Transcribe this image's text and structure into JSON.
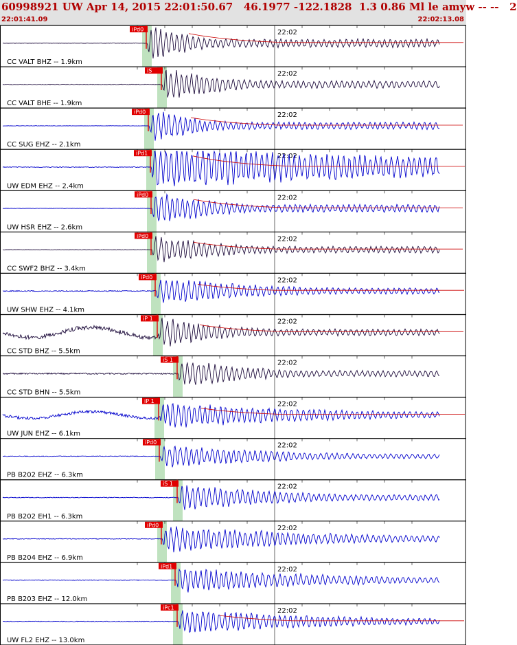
{
  "header": {
    "title": "60998921 UW Apr 14, 2015 22:01:50.67   46.1977 -122.1828  1.3 0.86 Ml le amyw -- --   2",
    "start_time": "22:01:41.09",
    "end_time": "22:02:13.08"
  },
  "colors": {
    "header_bg": "#e2e2e2",
    "header_text": "#b00000",
    "pick": "#e00000",
    "window": "#b4ddb4",
    "trace_blue": "#0000cc",
    "trace_dark": "#1c0a3a",
    "envelope": "#cc0000"
  },
  "chart_data": {
    "type": "line",
    "time_axis": {
      "start": "22:01:41.09",
      "end": "22:02:13.08",
      "minute_mark": "22:02"
    },
    "traces": [
      {
        "label": "CC VALT BHZ -- 1.9km",
        "pick": "iPd0",
        "color": "dark",
        "onset": 215,
        "amp": 30,
        "decay": 0.014,
        "noise": 0.5,
        "envelope": true
      },
      {
        "label": "CC VALT BHE -- 1.9km",
        "pick": "iS",
        "color": "dark",
        "onset": 237,
        "amp": 26,
        "decay": 0.01,
        "noise": 1,
        "envelope": false
      },
      {
        "label": "CC SUG EHZ -- 2.1km",
        "pick": "iPd0",
        "color": "blue",
        "onset": 218,
        "amp": 26,
        "decay": 0.012,
        "noise": 0.5,
        "envelope": true
      },
      {
        "label": "UW EDM EHZ -- 2.4km",
        "pick": "iPd1",
        "color": "blue",
        "onset": 221,
        "amp": 34,
        "decay": 0.002,
        "noise": 1,
        "envelope": true
      },
      {
        "label": "UW HSR EHZ -- 2.6km",
        "pick": "iPd0",
        "color": "blue",
        "onset": 222,
        "amp": 28,
        "decay": 0.01,
        "noise": 0.5,
        "envelope": true
      },
      {
        "label": "CC SWF2 BHZ -- 3.4km",
        "pick": "iPd0",
        "color": "dark",
        "onset": 222,
        "amp": 24,
        "decay": 0.009,
        "noise": 0.5,
        "envelope": true
      },
      {
        "label": "UW SHW EHZ -- 4.1km",
        "pick": "iPd0",
        "color": "blue",
        "onset": 228,
        "amp": 22,
        "decay": 0.006,
        "noise": 1.5,
        "envelope": true
      },
      {
        "label": "CC STD BHZ -- 5.5km",
        "pick": "iP 1",
        "color": "dark",
        "onset": 231,
        "amp": 24,
        "decay": 0.009,
        "noise": 6,
        "envelope": true
      },
      {
        "label": "CC STD BHN -- 5.5km",
        "pick": "iS 1",
        "color": "dark",
        "onset": 260,
        "amp": 22,
        "decay": 0.008,
        "noise": 2,
        "envelope": false
      },
      {
        "label": "UW JUN EHZ -- 6.1km",
        "pick": "iP 1",
        "color": "blue",
        "onset": 233,
        "amp": 22,
        "decay": 0.004,
        "noise": 4,
        "envelope": true
      },
      {
        "label": "PB B202 EHZ -- 6.3km",
        "pick": "iPd0",
        "color": "blue",
        "onset": 234,
        "amp": 18,
        "decay": 0.005,
        "noise": 1,
        "envelope": false
      },
      {
        "label": "PB B202 EH1 -- 6.3km",
        "pick": "iS 1",
        "color": "blue",
        "onset": 260,
        "amp": 22,
        "decay": 0.006,
        "noise": 1,
        "envelope": false
      },
      {
        "label": "PB B204 EHZ -- 6.9km",
        "pick": "iPd0",
        "color": "blue",
        "onset": 237,
        "amp": 22,
        "decay": 0.004,
        "noise": 1,
        "envelope": false
      },
      {
        "label": "PB B203 EHZ -- 12.0km",
        "pick": "iPd1",
        "color": "blue",
        "onset": 257,
        "amp": 20,
        "decay": 0.004,
        "noise": 1,
        "envelope": false
      },
      {
        "label": "UW FL2 EHZ -- 13.0km",
        "pick": "iPc1",
        "color": "blue",
        "onset": 260,
        "amp": 20,
        "decay": 0.004,
        "noise": 1,
        "envelope": true
      }
    ]
  }
}
